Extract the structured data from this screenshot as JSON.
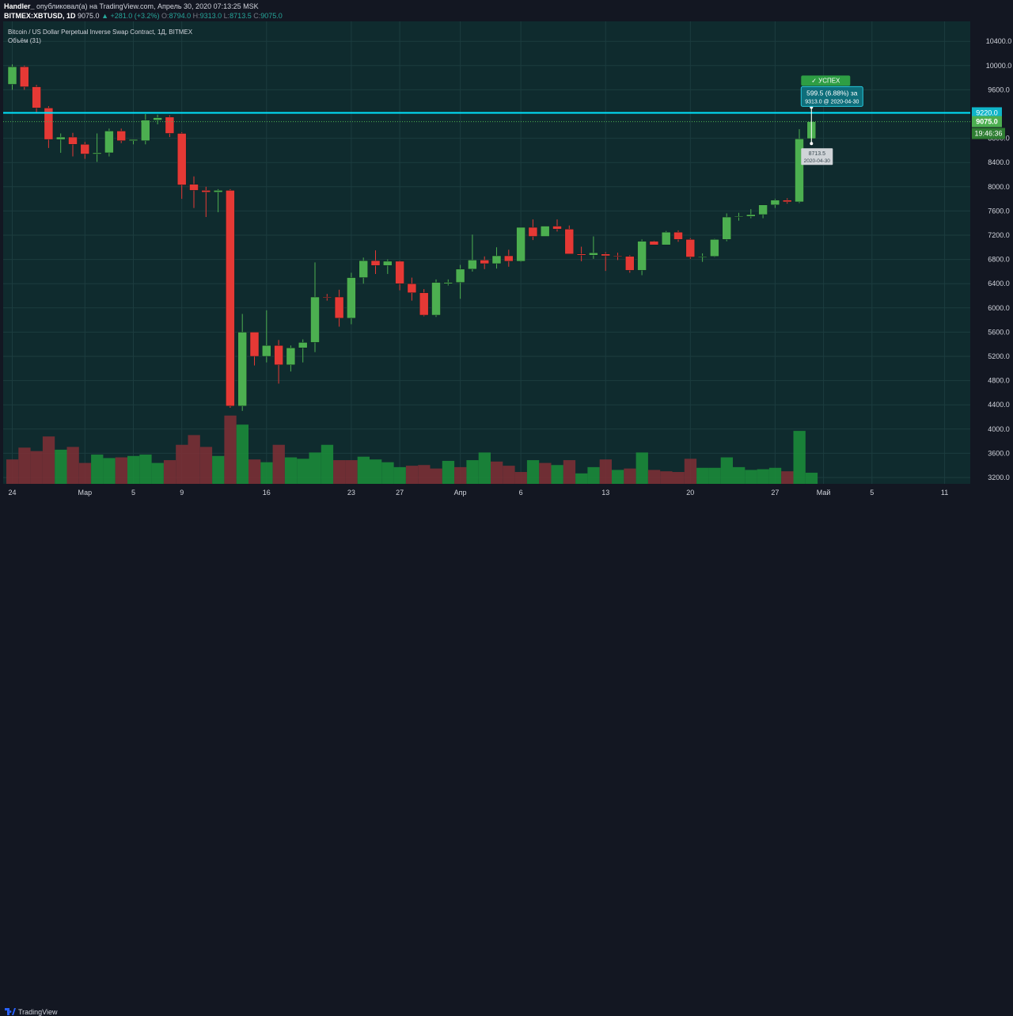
{
  "header": {
    "author": "Handler_",
    "published_text": " опубликовал(а) на TradingView.com, Апрель 30, 2020 07:13:25 MSK",
    "symbol": "BITMEX:XBTUSD, 1D",
    "price": "9075.0",
    "change": "▲ +281.0 (+3.2%)",
    "o_label": "O:",
    "o_value": "8794.0",
    "h_label": "H:",
    "h_value": "9313.0",
    "l_label": "L:",
    "l_value": "8713.5",
    "c_label": "C:",
    "c_value": "9075.0"
  },
  "legend": {
    "title": "Bitcoin / US Dollar Perpetual Inverse Swap Contract, 1Д, BITMEX",
    "volume": "Объём (31)"
  },
  "price_labels": {
    "level": "9220.0",
    "current": "9075.0",
    "countdown": "19:46:36"
  },
  "measure": {
    "badge": "✓ УСПЕХ",
    "line1": "599.5 (6.88%) за",
    "line2": "9313.0 @ 2020-04-30",
    "low_line1": "8713.5",
    "low_line2": "2020-04-30"
  },
  "footer": {
    "brand": "TradingView"
  },
  "colors": {
    "up": "#4caf50",
    "down": "#e53935",
    "level_line": "#00e5ff",
    "background": "#0f2b2e",
    "volume_up": "#1b8a3a",
    "volume_down": "#7a2f35"
  },
  "chart_data": {
    "type": "candlestick",
    "ylim": [
      3100,
      10600
    ],
    "y_ticks": [
      3200,
      3600,
      4000,
      4400,
      4800,
      5200,
      5600,
      6000,
      6400,
      6800,
      7200,
      7600,
      8000,
      8400,
      8800,
      9600,
      10000,
      10400
    ],
    "y_tick_labels": [
      "3200.0",
      "3600.0",
      "4000.0",
      "4400.0",
      "4800.0",
      "5200.0",
      "5600.0",
      "6000.0",
      "6400.0",
      "6800.0",
      "7200.0",
      "7600.0",
      "8000.0",
      "8400.0",
      "8800.0",
      "9600.0",
      "10000.0",
      "10400.0"
    ],
    "x_tick_labels": [
      {
        "label": "24",
        "index": 0
      },
      {
        "label": "Мар",
        "index": 6
      },
      {
        "label": "5",
        "index": 10
      },
      {
        "label": "9",
        "index": 14
      },
      {
        "label": "16",
        "index": 21
      },
      {
        "label": "23",
        "index": 28
      },
      {
        "label": "27",
        "index": 32
      },
      {
        "label": "Апр",
        "index": 37
      },
      {
        "label": "6",
        "index": 42
      },
      {
        "label": "13",
        "index": 49
      },
      {
        "label": "20",
        "index": 56
      },
      {
        "label": "27",
        "index": 63
      },
      {
        "label": "Май",
        "index": 67
      },
      {
        "label": "5",
        "index": 71
      },
      {
        "label": "11",
        "index": 77
      }
    ],
    "level_line": 9220,
    "candles": [
      {
        "o": 9690,
        "h": 10020,
        "l": 9600,
        "c": 9980
      },
      {
        "o": 9980,
        "h": 10000,
        "l": 9600,
        "c": 9650
      },
      {
        "o": 9650,
        "h": 9680,
        "l": 9230,
        "c": 9300
      },
      {
        "o": 9300,
        "h": 9330,
        "l": 8640,
        "c": 8780
      },
      {
        "o": 8780,
        "h": 8880,
        "l": 8560,
        "c": 8820
      },
      {
        "o": 8820,
        "h": 8890,
        "l": 8500,
        "c": 8700
      },
      {
        "o": 8700,
        "h": 8740,
        "l": 8460,
        "c": 8540
      },
      {
        "o": 8540,
        "h": 8880,
        "l": 8410,
        "c": 8560
      },
      {
        "o": 8560,
        "h": 8960,
        "l": 8500,
        "c": 8920
      },
      {
        "o": 8920,
        "h": 8960,
        "l": 8720,
        "c": 8760
      },
      {
        "o": 8760,
        "h": 8780,
        "l": 8700,
        "c": 8780
      },
      {
        "o": 8760,
        "h": 9200,
        "l": 8700,
        "c": 9100
      },
      {
        "o": 9100,
        "h": 9190,
        "l": 9030,
        "c": 9140
      },
      {
        "o": 9150,
        "h": 9180,
        "l": 8820,
        "c": 8880
      },
      {
        "o": 8880,
        "h": 8900,
        "l": 7800,
        "c": 8030
      },
      {
        "o": 8040,
        "h": 8170,
        "l": 7650,
        "c": 7940
      },
      {
        "o": 7940,
        "h": 8000,
        "l": 7500,
        "c": 7910
      },
      {
        "o": 7910,
        "h": 7960,
        "l": 7580,
        "c": 7940
      },
      {
        "o": 7940,
        "h": 7960,
        "l": 4350,
        "c": 4380
      },
      {
        "o": 4380,
        "h": 5900,
        "l": 4300,
        "c": 5600
      },
      {
        "o": 5600,
        "h": 5600,
        "l": 5050,
        "c": 5200
      },
      {
        "o": 5200,
        "h": 5960,
        "l": 5100,
        "c": 5380
      },
      {
        "o": 5380,
        "h": 5470,
        "l": 4750,
        "c": 5060
      },
      {
        "o": 5060,
        "h": 5380,
        "l": 4950,
        "c": 5340
      },
      {
        "o": 5340,
        "h": 5480,
        "l": 5100,
        "c": 5430
      },
      {
        "o": 5430,
        "h": 6750,
        "l": 5270,
        "c": 6180
      },
      {
        "o": 6180,
        "h": 6230,
        "l": 6120,
        "c": 6170
      },
      {
        "o": 6180,
        "h": 6300,
        "l": 5690,
        "c": 5830
      },
      {
        "o": 5830,
        "h": 6580,
        "l": 5730,
        "c": 6500
      },
      {
        "o": 6500,
        "h": 6830,
        "l": 6400,
        "c": 6780
      },
      {
        "o": 6780,
        "h": 6950,
        "l": 6560,
        "c": 6700
      },
      {
        "o": 6700,
        "h": 6800,
        "l": 6560,
        "c": 6770
      },
      {
        "o": 6770,
        "h": 6780,
        "l": 6290,
        "c": 6400
      },
      {
        "o": 6400,
        "h": 6500,
        "l": 6120,
        "c": 6250
      },
      {
        "o": 6250,
        "h": 6310,
        "l": 5860,
        "c": 5880
      },
      {
        "o": 5880,
        "h": 6470,
        "l": 5850,
        "c": 6420
      },
      {
        "o": 6400,
        "h": 6470,
        "l": 6370,
        "c": 6420
      },
      {
        "o": 6420,
        "h": 6710,
        "l": 6150,
        "c": 6640
      },
      {
        "o": 6640,
        "h": 7210,
        "l": 6600,
        "c": 6790
      },
      {
        "o": 6790,
        "h": 6850,
        "l": 6640,
        "c": 6730
      },
      {
        "o": 6730,
        "h": 7000,
        "l": 6650,
        "c": 6860
      },
      {
        "o": 6860,
        "h": 6960,
        "l": 6680,
        "c": 6770
      },
      {
        "o": 6770,
        "h": 7330,
        "l": 6760,
        "c": 7330
      },
      {
        "o": 7330,
        "h": 7460,
        "l": 7120,
        "c": 7180
      },
      {
        "o": 7180,
        "h": 7350,
        "l": 7180,
        "c": 7350
      },
      {
        "o": 7350,
        "h": 7460,
        "l": 7260,
        "c": 7300
      },
      {
        "o": 7300,
        "h": 7360,
        "l": 6890,
        "c": 6890
      },
      {
        "o": 6890,
        "h": 7010,
        "l": 6770,
        "c": 6870
      },
      {
        "o": 6870,
        "h": 7180,
        "l": 6810,
        "c": 6910
      },
      {
        "o": 6890,
        "h": 6920,
        "l": 6610,
        "c": 6860
      },
      {
        "o": 6860,
        "h": 6910,
        "l": 6790,
        "c": 6850
      },
      {
        "o": 6850,
        "h": 6870,
        "l": 6580,
        "c": 6620
      },
      {
        "o": 6620,
        "h": 7130,
        "l": 6540,
        "c": 7100
      },
      {
        "o": 7100,
        "h": 7110,
        "l": 7040,
        "c": 7040
      },
      {
        "o": 7040,
        "h": 7270,
        "l": 7040,
        "c": 7250
      },
      {
        "o": 7250,
        "h": 7280,
        "l": 7090,
        "c": 7130
      },
      {
        "o": 7130,
        "h": 7150,
        "l": 6810,
        "c": 6840
      },
      {
        "o": 6840,
        "h": 6900,
        "l": 6760,
        "c": 6850
      },
      {
        "o": 6850,
        "h": 7140,
        "l": 6840,
        "c": 7130
      },
      {
        "o": 7130,
        "h": 7560,
        "l": 7100,
        "c": 7500
      },
      {
        "o": 7500,
        "h": 7570,
        "l": 7440,
        "c": 7510
      },
      {
        "o": 7510,
        "h": 7630,
        "l": 7480,
        "c": 7540
      },
      {
        "o": 7540,
        "h": 7700,
        "l": 7480,
        "c": 7700
      },
      {
        "o": 7700,
        "h": 7800,
        "l": 7650,
        "c": 7780
      },
      {
        "o": 7780,
        "h": 7810,
        "l": 7720,
        "c": 7750
      },
      {
        "o": 7750,
        "h": 8950,
        "l": 7730,
        "c": 8790
      },
      {
        "o": 8794,
        "h": 9313,
        "l": 8713.5,
        "c": 9075
      }
    ],
    "volume": [
      {
        "v": 0.35,
        "up": false
      },
      {
        "v": 0.52,
        "up": false
      },
      {
        "v": 0.47,
        "up": false
      },
      {
        "v": 0.68,
        "up": false
      },
      {
        "v": 0.49,
        "up": true
      },
      {
        "v": 0.53,
        "up": false
      },
      {
        "v": 0.3,
        "up": false
      },
      {
        "v": 0.42,
        "up": true
      },
      {
        "v": 0.37,
        "up": true
      },
      {
        "v": 0.38,
        "up": false
      },
      {
        "v": 0.4,
        "up": true
      },
      {
        "v": 0.42,
        "up": true
      },
      {
        "v": 0.3,
        "up": true
      },
      {
        "v": 0.34,
        "up": false
      },
      {
        "v": 0.56,
        "up": false
      },
      {
        "v": 0.7,
        "up": false
      },
      {
        "v": 0.53,
        "up": false
      },
      {
        "v": 0.4,
        "up": true
      },
      {
        "v": 0.98,
        "up": false
      },
      {
        "v": 0.85,
        "up": true
      },
      {
        "v": 0.35,
        "up": false
      },
      {
        "v": 0.31,
        "up": true
      },
      {
        "v": 0.56,
        "up": false
      },
      {
        "v": 0.38,
        "up": true
      },
      {
        "v": 0.36,
        "up": true
      },
      {
        "v": 0.45,
        "up": true
      },
      {
        "v": 0.56,
        "up": true
      },
      {
        "v": 0.34,
        "up": false
      },
      {
        "v": 0.34,
        "up": false
      },
      {
        "v": 0.39,
        "up": true
      },
      {
        "v": 0.35,
        "up": true
      },
      {
        "v": 0.31,
        "up": true
      },
      {
        "v": 0.24,
        "up": true
      },
      {
        "v": 0.26,
        "up": false
      },
      {
        "v": 0.27,
        "up": false
      },
      {
        "v": 0.22,
        "up": false
      },
      {
        "v": 0.33,
        "up": true
      },
      {
        "v": 0.24,
        "up": false
      },
      {
        "v": 0.34,
        "up": true
      },
      {
        "v": 0.45,
        "up": true
      },
      {
        "v": 0.32,
        "up": false
      },
      {
        "v": 0.26,
        "up": false
      },
      {
        "v": 0.17,
        "up": false
      },
      {
        "v": 0.34,
        "up": true
      },
      {
        "v": 0.3,
        "up": false
      },
      {
        "v": 0.27,
        "up": true
      },
      {
        "v": 0.34,
        "up": false
      },
      {
        "v": 0.15,
        "up": true
      },
      {
        "v": 0.24,
        "up": true
      },
      {
        "v": 0.35,
        "up": false
      },
      {
        "v": 0.2,
        "up": true
      },
      {
        "v": 0.22,
        "up": false
      },
      {
        "v": 0.45,
        "up": true
      },
      {
        "v": 0.2,
        "up": false
      },
      {
        "v": 0.18,
        "up": false
      },
      {
        "v": 0.17,
        "up": false
      },
      {
        "v": 0.36,
        "up": false
      },
      {
        "v": 0.23,
        "up": true
      },
      {
        "v": 0.23,
        "up": true
      },
      {
        "v": 0.38,
        "up": true
      },
      {
        "v": 0.24,
        "up": true
      },
      {
        "v": 0.2,
        "up": true
      },
      {
        "v": 0.21,
        "up": true
      },
      {
        "v": 0.23,
        "up": true
      },
      {
        "v": 0.18,
        "up": false
      },
      {
        "v": 0.76,
        "up": true
      },
      {
        "v": 0.16,
        "up": true
      }
    ]
  }
}
